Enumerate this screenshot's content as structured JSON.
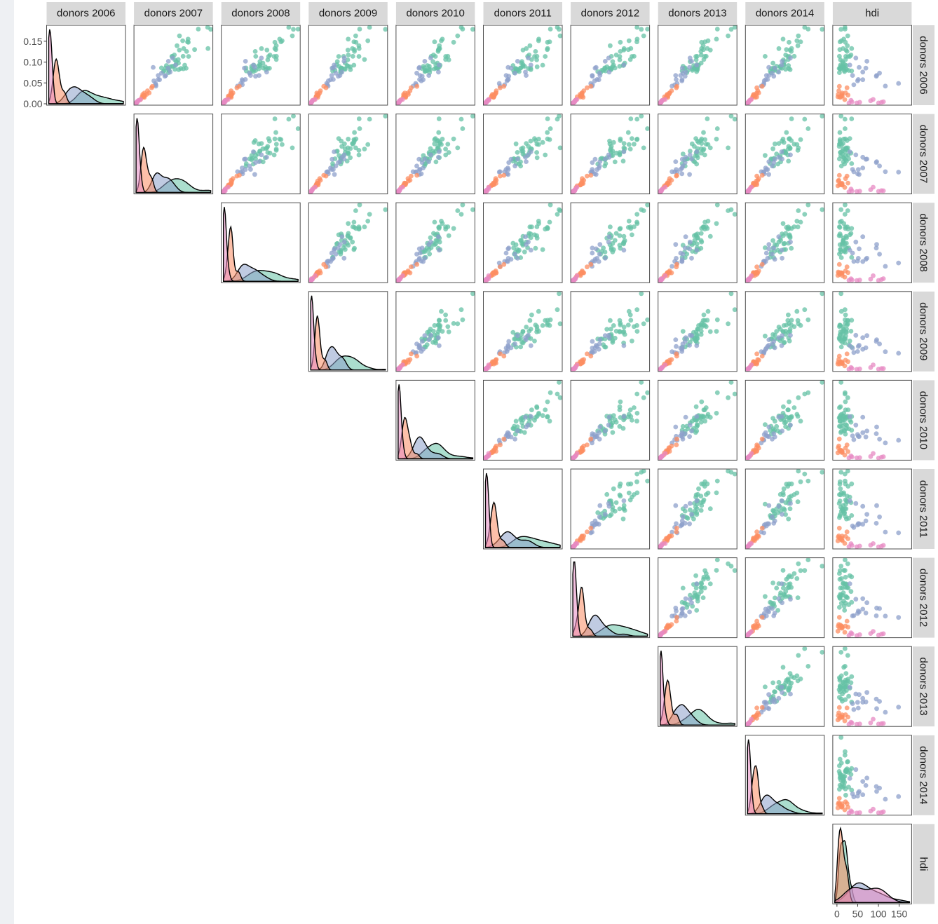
{
  "chart_data": {
    "type": "scatter",
    "variables": [
      "donors 2006",
      "donors 2007",
      "donors 2008",
      "donors 2009",
      "donors 2010",
      "donors 2011",
      "donors 2012",
      "donors 2013",
      "donors 2014",
      "hdi"
    ],
    "diagonal_type": "density",
    "lower_triangle": "empty",
    "upper_triangle_type": "scatter",
    "grid": false,
    "group_colors": [
      "#66c2a5",
      "#8da0cb",
      "#fc8d62",
      "#e78ac3"
    ],
    "density_y_ticks": [
      "0.00",
      "0.05",
      "0.10",
      "0.15"
    ],
    "density_y_values": [
      0.0,
      0.05,
      0.1,
      0.15
    ],
    "density_ylim": [
      0,
      0.185
    ],
    "hdi_x_ticks": [
      "0",
      "50",
      "100",
      "150"
    ],
    "hdi_x_values": [
      0,
      50,
      100,
      150
    ],
    "hdi_xlim": [
      -5,
      175
    ]
  }
}
